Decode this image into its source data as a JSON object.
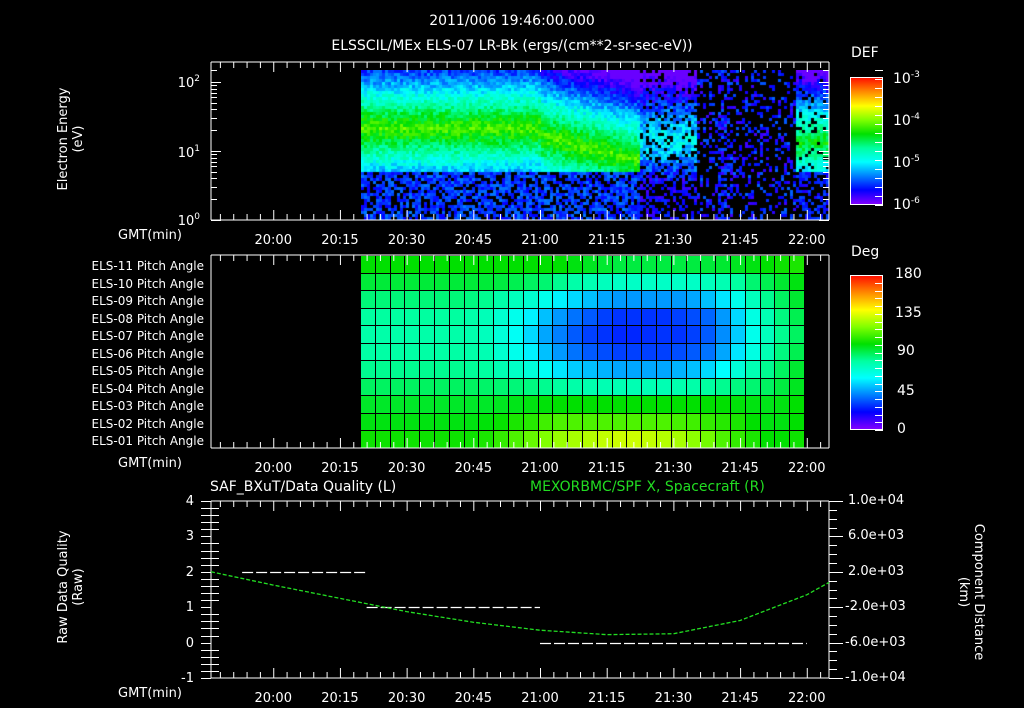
{
  "header": {
    "timestamp": "2011/006 19:46:00.000",
    "title": "ELSSCIL/MEx ELS-07 LR-Bk  (ergs/(cm**2-sr-sec-eV))"
  },
  "time_axis": {
    "label": "GMT(min)",
    "ticks": [
      "20:00",
      "20:15",
      "20:30",
      "20:45",
      "21:00",
      "21:15",
      "21:30",
      "21:45",
      "22:00"
    ],
    "start": "19:46",
    "end": "22:05"
  },
  "colors": {
    "background": "#000000",
    "foreground": "#ffffff",
    "series_right": "#22dd22",
    "series_left": "#ffffff"
  },
  "chart_data": [
    {
      "type": "heatmap",
      "title": "ELSSCIL/MEx ELS-07 LR-Bk (ergs/(cm**2-sr-sec-eV))",
      "xlabel": "GMT(min)",
      "ylabel": "Electron Energy (eV)",
      "yscale": "log",
      "ylim": [
        1,
        150
      ],
      "y_ticks": [
        "10^0",
        "10^1",
        "10^2"
      ],
      "x_ticks": [
        "20:00",
        "20:15",
        "20:30",
        "20:45",
        "21:00",
        "21:15",
        "21:30",
        "21:45",
        "22:00"
      ],
      "data_start": "20:20",
      "data_end": "22:05",
      "colorbar": {
        "label": "DEF",
        "scale": "log",
        "range": [
          1e-06,
          0.001
        ],
        "ticks": [
          "10^-3",
          "10^-4",
          "10^-5",
          "10^-6"
        ]
      },
      "features": [
        {
          "from": "20:20",
          "to": "21:22",
          "energy_eV": [
            8,
            80
          ],
          "level": "~1e-4 (green band, peak ~20-30 eV)"
        },
        {
          "from": "21:22",
          "to": "21:34",
          "energy_eV": [
            5,
            60
          ],
          "level": "~1e-5 (cyan/blue)"
        },
        {
          "from": "21:34",
          "to": "21:55",
          "energy_eV": [
            1,
            150
          ],
          "level": "<1e-6 sparse"
        },
        {
          "from": "21:58",
          "to": "22:05",
          "energy_eV": [
            8,
            40
          ],
          "level": "~5e-5 (cyan/green)"
        }
      ]
    },
    {
      "type": "heatmap",
      "title": "Pitch Angle",
      "xlabel": "GMT(min)",
      "colorbar": {
        "label": "Deg",
        "range": [
          0,
          180
        ],
        "ticks": [
          "180",
          "135",
          "90",
          "45",
          "0"
        ]
      },
      "rows": [
        "ELS-11 Pitch Angle",
        "ELS-10 Pitch Angle",
        "ELS-09 Pitch Angle",
        "ELS-08 Pitch Angle",
        "ELS-07 Pitch Angle",
        "ELS-06 Pitch Angle",
        "ELS-05 Pitch Angle",
        "ELS-04 Pitch Angle",
        "ELS-03 Pitch Angle",
        "ELS-02 Pitch Angle",
        "ELS-01 Pitch Angle"
      ],
      "data_start": "20:20",
      "data_end": "22:02",
      "columns": 30,
      "values_deg": [
        [
          100,
          100,
          100,
          100,
          100,
          100,
          100,
          100,
          100,
          100,
          100,
          100,
          100,
          100,
          98,
          96,
          94,
          92,
          92,
          92,
          92,
          92,
          92,
          93,
          94,
          96,
          98,
          100,
          102,
          104
        ],
        [
          93,
          93,
          93,
          93,
          93,
          93,
          93,
          93,
          93,
          92,
          90,
          88,
          86,
          82,
          78,
          76,
          74,
          72,
          72,
          72,
          72,
          72,
          72,
          74,
          76,
          80,
          86,
          90,
          94,
          98
        ],
        [
          85,
          85,
          85,
          85,
          85,
          85,
          85,
          84,
          82,
          78,
          74,
          70,
          64,
          58,
          54,
          50,
          46,
          44,
          44,
          44,
          44,
          44,
          46,
          50,
          56,
          64,
          74,
          82,
          88,
          94
        ],
        [
          80,
          80,
          80,
          80,
          80,
          80,
          80,
          78,
          75,
          70,
          64,
          58,
          50,
          44,
          38,
          34,
          30,
          28,
          28,
          28,
          28,
          30,
          32,
          36,
          44,
          54,
          66,
          76,
          84,
          90
        ],
        [
          78,
          78,
          78,
          78,
          78,
          78,
          78,
          77,
          74,
          68,
          62,
          54,
          46,
          40,
          34,
          30,
          28,
          26,
          26,
          27,
          28,
          28,
          30,
          34,
          42,
          52,
          64,
          74,
          82,
          88
        ],
        [
          79,
          79,
          79,
          79,
          79,
          79,
          79,
          78,
          76,
          70,
          64,
          58,
          50,
          44,
          38,
          34,
          32,
          30,
          30,
          30,
          30,
          32,
          34,
          38,
          46,
          56,
          66,
          76,
          84,
          90
        ],
        [
          82,
          82,
          82,
          82,
          82,
          82,
          82,
          81,
          80,
          76,
          72,
          68,
          62,
          56,
          52,
          50,
          48,
          46,
          46,
          46,
          46,
          48,
          50,
          54,
          60,
          68,
          76,
          82,
          88,
          94
        ],
        [
          88,
          88,
          88,
          88,
          88,
          88,
          88,
          88,
          87,
          86,
          85,
          84,
          82,
          80,
          78,
          77,
          76,
          76,
          76,
          76,
          76,
          77,
          78,
          80,
          82,
          84,
          86,
          88,
          92,
          96
        ],
        [
          95,
          95,
          95,
          95,
          95,
          95,
          95,
          95,
          95,
          96,
          97,
          98,
          99,
          100,
          100,
          100,
          100,
          100,
          100,
          100,
          100,
          100,
          100,
          100,
          100,
          99,
          98,
          97,
          98,
          100
        ],
        [
          98,
          98,
          98,
          98,
          98,
          98,
          98,
          98,
          99,
          101,
          104,
          106,
          110,
          112,
          112,
          112,
          112,
          112,
          112,
          112,
          112,
          111,
          110,
          108,
          106,
          104,
          100,
          98,
          98,
          100
        ],
        [
          102,
          102,
          102,
          102,
          102,
          102,
          102,
          102,
          104,
          108,
          112,
          116,
          120,
          124,
          126,
          128,
          130,
          132,
          132,
          130,
          128,
          126,
          122,
          118,
          112,
          108,
          104,
          100,
          100,
          102
        ]
      ]
    },
    {
      "type": "line",
      "title_left": "SAF_BXuT/Data Quality (L)",
      "title_right": "MEXORBMC/SPF X, Spacecraft (R)",
      "xlabel": "GMT(min)",
      "ylabel_left": "Raw Data Quality (Raw)",
      "ylabel_right": "Component Distance (km)",
      "ylim_left": [
        -1,
        4
      ],
      "y_ticks_left": [
        "4",
        "3",
        "2",
        "1",
        "0",
        "-1"
      ],
      "ylim_right": [
        -10000,
        10000
      ],
      "y_ticks_right": [
        "1.0e+04",
        "6.0e+03",
        "2.0e+03",
        "-2.0e+03",
        "-6.0e+03",
        "-1.0e+04"
      ],
      "series": [
        {
          "name": "Data Quality (L)",
          "axis": "left",
          "color": "#ffffff",
          "style": "step-dashed",
          "segments": [
            {
              "from": "19:53",
              "to": "20:21",
              "value": 2
            },
            {
              "from": "20:21",
              "to": "21:00",
              "value": 1
            },
            {
              "from": "21:00",
              "to": "22:00",
              "value": 0
            }
          ]
        },
        {
          "name": "SPF X Spacecraft (R)",
          "axis": "right",
          "color": "#22dd22",
          "style": "dotted",
          "x": [
            "19:46",
            "20:00",
            "20:15",
            "20:30",
            "20:45",
            "21:00",
            "21:15",
            "21:30",
            "21:45",
            "22:00",
            "22:05"
          ],
          "values": [
            2000,
            500,
            -1000,
            -2500,
            -3700,
            -4600,
            -5100,
            -5000,
            -3500,
            -600,
            800
          ]
        }
      ]
    }
  ],
  "panels": {
    "spectrogram": {
      "ylabel_line1": "Electron Energy",
      "ylabel_line2": "(eV)",
      "y_ticks": [
        {
          "base": "10",
          "exp": "2"
        },
        {
          "base": "10",
          "exp": "1"
        },
        {
          "base": "10",
          "exp": "0"
        }
      ],
      "colorbar_label": "DEF",
      "colorbar_ticks": [
        {
          "base": "10",
          "exp": "-3"
        },
        {
          "base": "10",
          "exp": "-4"
        },
        {
          "base": "10",
          "exp": "-5"
        },
        {
          "base": "10",
          "exp": "-6"
        }
      ]
    },
    "pitch": {
      "colorbar_label": "Deg",
      "colorbar_ticks": [
        "180",
        "135",
        "90",
        "45",
        "0"
      ],
      "rows": [
        "ELS-11 Pitch Angle",
        "ELS-10 Pitch Angle",
        "ELS-09 Pitch Angle",
        "ELS-08 Pitch Angle",
        "ELS-07 Pitch Angle",
        "ELS-06 Pitch Angle",
        "ELS-05 Pitch Angle",
        "ELS-04 Pitch Angle",
        "ELS-03 Pitch Angle",
        "ELS-02 Pitch Angle",
        "ELS-01 Pitch Angle"
      ]
    },
    "lineplot": {
      "title_left": "SAF_BXuT/Data Quality (L)",
      "title_right": "MEXORBMC/SPF X, Spacecraft (R)",
      "ylabel_left_line1": "Raw Data Quality",
      "ylabel_left_line2": "(Raw)",
      "ylabel_right_line1": "Component Distance",
      "ylabel_right_line2": "(km)",
      "y_ticks_left": [
        "4",
        "3",
        "2",
        "1",
        "0",
        "-1"
      ],
      "y_ticks_right": [
        "1.0e+04",
        "6.0e+03",
        "2.0e+03",
        "-2.0e+03",
        "-6.0e+03",
        "-1.0e+04"
      ]
    }
  }
}
